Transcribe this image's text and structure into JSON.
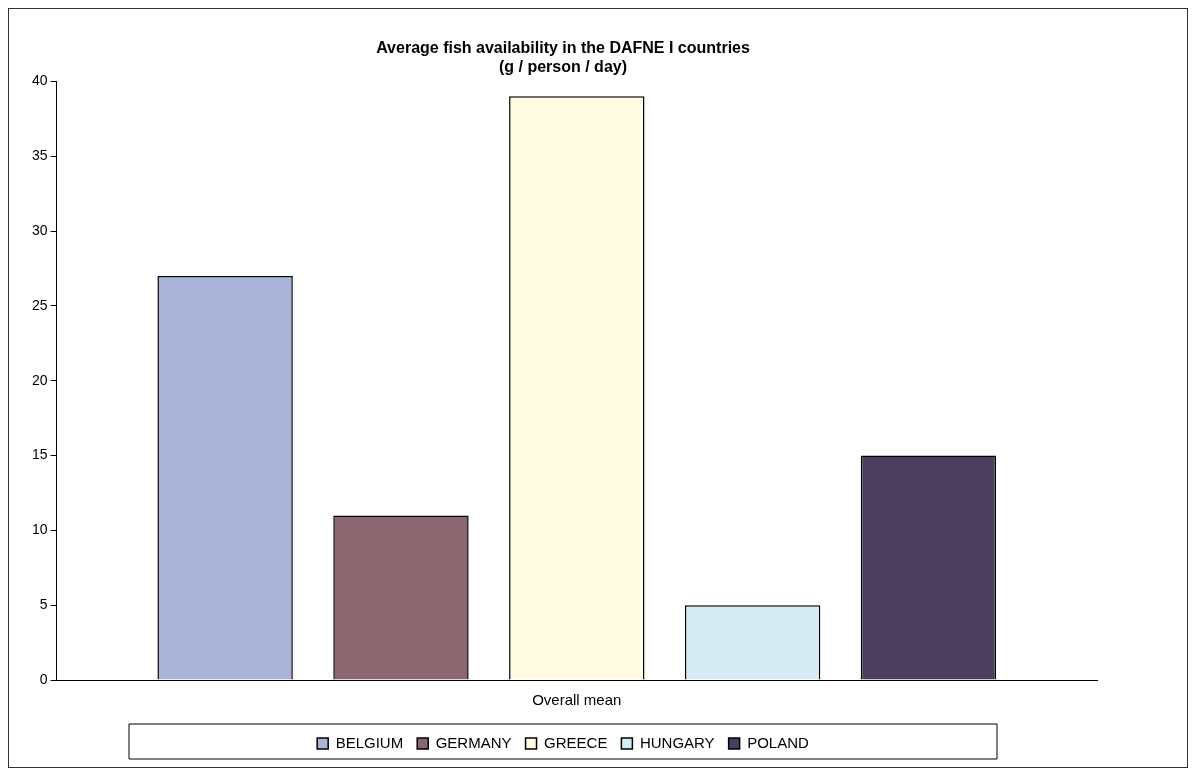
{
  "chart_data": {
    "type": "bar",
    "title": [
      "Average fish availability in the DAFNE I countries",
      "(g / person / day)"
    ],
    "categories": [
      "Overall mean"
    ],
    "series": [
      {
        "name": "BELGIUM",
        "color": "#a9b4d8",
        "values": [
          27
        ]
      },
      {
        "name": "GERMANY",
        "color": "#8a6670",
        "values": [
          11
        ]
      },
      {
        "name": "GREECE",
        "color": "#fffbe0",
        "values": [
          39
        ]
      },
      {
        "name": "HUNGARY",
        "color": "#d5ecf5",
        "values": [
          5
        ]
      },
      {
        "name": "POLAND",
        "color": "#4a3f5c",
        "values": [
          15
        ]
      }
    ],
    "ylim": [
      0,
      40
    ],
    "yticks": [
      0,
      5,
      10,
      15,
      20,
      25,
      30,
      35,
      40
    ],
    "grid": false,
    "legend": "bottom"
  }
}
